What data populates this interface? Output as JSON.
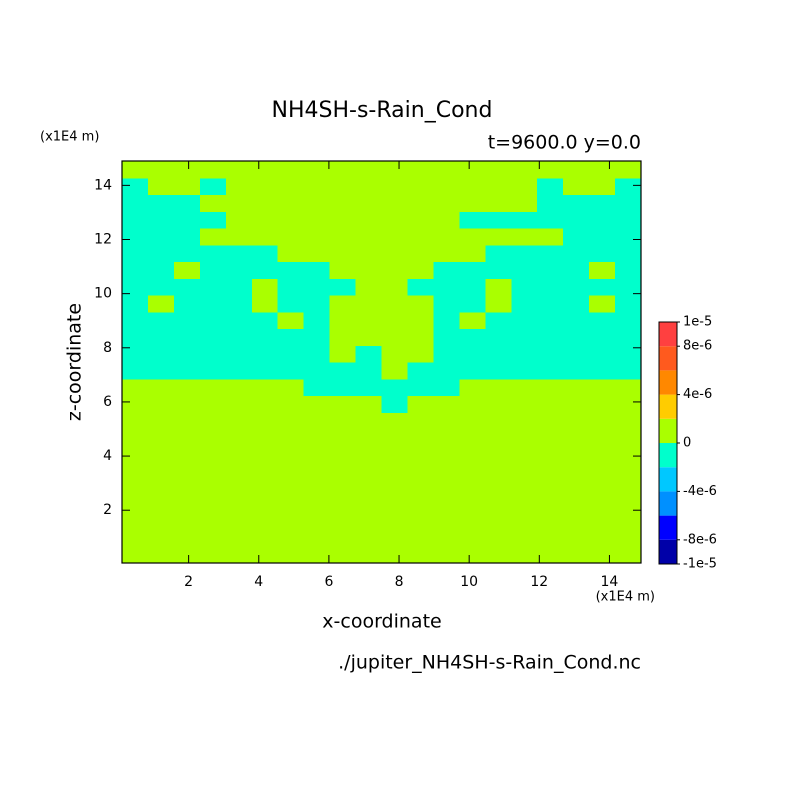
{
  "chart_data": {
    "type": "contourf",
    "title": "NH4SH-s-Rain_Cond",
    "subtitle": "t=9600.0 y=0.0",
    "x_label": "x-coordinate",
    "y_label": "z-coordinate",
    "x_unit": "(x1E4 m)",
    "y_unit": "(x1E4 m)",
    "source": "./jupiter_NH4SH-s-Rain_Cond.nc",
    "xlim": [
      0.1,
      14.9
    ],
    "ylim": [
      0.05,
      14.9
    ],
    "xticks": [
      2,
      4,
      6,
      8,
      10,
      12,
      14
    ],
    "yticks": [
      2,
      4,
      6,
      8,
      10,
      12,
      14
    ],
    "levels": [
      -1e-05,
      -8e-06,
      -6e-06,
      -4e-06,
      -2e-06,
      0,
      2e-06,
      4e-06,
      6e-06,
      8e-06,
      1e-05
    ],
    "colors": [
      "#0000a8",
      "#0000ff",
      "#0090ff",
      "#00c8ff",
      "#00ffcc",
      "#aaff00",
      "#ffcc00",
      "#ff8800",
      "#ff5a1e",
      "#ff4040"
    ],
    "colorbar_ticks": [
      {
        "value": 1e-05,
        "label": "1e-5"
      },
      {
        "value": 8e-06,
        "label": "8e-6"
      },
      {
        "value": 4e-06,
        "label": "4e-6"
      },
      0,
      {
        "value": -4e-06,
        "label": "-4e-6"
      },
      {
        "value": -8e-06,
        "label": "-8e-6"
      },
      {
        "value": -1e-05,
        "label": "-1e-5"
      }
    ],
    "z": [
      [
        1e-06,
        1e-06,
        1e-06,
        1e-06,
        1e-06,
        1e-06,
        1e-06,
        1e-06,
        1e-06,
        1e-06,
        1e-06,
        1e-06,
        1e-06,
        1e-06,
        1e-06,
        1e-06,
        1e-06,
        1e-06,
        1e-06,
        1e-06
      ],
      [
        1e-06,
        1e-06,
        1e-06,
        1e-06,
        1e-06,
        1e-06,
        1e-06,
        1e-06,
        1e-06,
        1e-06,
        1e-06,
        1e-06,
        1e-06,
        1e-06,
        1e-06,
        1e-06,
        1e-06,
        1e-06,
        1e-06,
        1e-06
      ],
      [
        1e-06,
        1e-06,
        1e-06,
        1e-06,
        1e-06,
        1e-06,
        1e-06,
        1e-06,
        1e-06,
        1e-06,
        1e-06,
        1e-06,
        1e-06,
        1e-06,
        1e-06,
        1e-06,
        1e-06,
        1e-06,
        1e-06,
        1e-06
      ],
      [
        1e-06,
        1e-06,
        1e-06,
        1e-06,
        1e-06,
        1e-06,
        1e-06,
        1e-06,
        1e-06,
        1e-06,
        1e-06,
        1e-06,
        1e-06,
        1e-06,
        1e-06,
        1e-06,
        1e-06,
        1e-06,
        1e-06,
        1e-06
      ],
      [
        1e-06,
        1e-06,
        1e-06,
        1e-06,
        1e-06,
        1e-06,
        1e-06,
        1e-06,
        1e-06,
        1e-06,
        1e-06,
        1e-06,
        1e-06,
        1e-06,
        1e-06,
        1e-06,
        1e-06,
        1e-06,
        1e-06,
        1e-06
      ],
      [
        1e-06,
        1e-06,
        1e-06,
        1e-06,
        1e-06,
        1e-06,
        1e-06,
        1e-06,
        1e-06,
        1e-06,
        1e-06,
        1e-06,
        1e-06,
        1e-06,
        1e-06,
        1e-06,
        1e-06,
        1e-06,
        1e-06,
        1e-06
      ],
      [
        1e-06,
        1e-06,
        1e-06,
        1e-06,
        1e-06,
        1e-06,
        1e-06,
        1e-06,
        1e-06,
        1e-06,
        1e-06,
        1e-06,
        1e-06,
        1e-06,
        1e-06,
        1e-06,
        1e-06,
        1e-06,
        1e-06,
        1e-06
      ],
      [
        1e-06,
        1e-06,
        1e-06,
        1e-06,
        1e-06,
        1e-06,
        1e-06,
        1e-06,
        1e-06,
        1e-06,
        1e-06,
        1e-06,
        1e-06,
        1e-06,
        1e-06,
        1e-06,
        1e-06,
        1e-06,
        1e-06,
        1e-06
      ],
      [
        1e-06,
        1e-06,
        1e-06,
        1e-06,
        1e-06,
        1e-06,
        1e-06,
        1e-06,
        1e-06,
        1e-06,
        1e-06,
        1e-06,
        1e-06,
        1e-06,
        1e-06,
        1e-06,
        1e-06,
        1e-06,
        1e-06,
        1e-06
      ],
      [
        1e-06,
        1e-06,
        1e-06,
        1e-06,
        1e-06,
        1e-06,
        1e-06,
        1e-06,
        1e-06,
        1e-06,
        -1e-06,
        1e-06,
        1e-06,
        1e-06,
        1e-06,
        1e-06,
        1e-06,
        1e-06,
        1e-06,
        1e-06
      ],
      [
        1e-06,
        1e-06,
        1e-06,
        1e-06,
        1e-06,
        1e-06,
        1e-06,
        -1e-06,
        -1e-06,
        -1e-06,
        -1e-06,
        -1e-06,
        -1e-06,
        1e-06,
        1e-06,
        1e-06,
        1e-06,
        1e-06,
        1e-06,
        1e-06
      ],
      [
        -1e-06,
        -1e-06,
        -1e-06,
        -1e-06,
        -1e-06,
        -1e-06,
        -1e-06,
        -1e-06,
        -1e-06,
        -1e-06,
        1e-06,
        -1e-06,
        -1e-06,
        -1e-06,
        -1e-06,
        -1e-06,
        -1e-06,
        -1e-06,
        -1e-06,
        -1e-06
      ],
      [
        -1e-06,
        -1e-06,
        -1e-06,
        -1e-06,
        -1e-06,
        -1e-06,
        -1e-06,
        -1e-06,
        1e-06,
        -1e-06,
        1e-06,
        1e-06,
        -1e-06,
        -1e-06,
        -1e-06,
        -1e-06,
        -1e-06,
        -1e-06,
        -1e-06,
        -1e-06
      ],
      [
        -1e-06,
        -1e-06,
        -1e-06,
        -1e-06,
        -1e-06,
        -1e-06,
        -1e-06,
        -1e-06,
        1e-06,
        1e-06,
        1e-06,
        1e-06,
        -1e-06,
        -1e-06,
        -1e-06,
        -1e-06,
        -1e-06,
        -1e-06,
        -1e-06,
        -1e-06
      ],
      [
        -1e-06,
        -1e-06,
        -1e-06,
        -1e-06,
        -1e-06,
        -1e-06,
        1e-06,
        -1e-06,
        1e-06,
        1e-06,
        1e-06,
        1e-06,
        -1e-06,
        1e-06,
        -1e-06,
        -1e-06,
        -1e-06,
        -1e-06,
        -1e-06,
        -1e-06
      ],
      [
        -1e-06,
        1e-06,
        -1e-06,
        -1e-06,
        -1e-06,
        1e-06,
        -1e-06,
        -1e-06,
        1e-06,
        1e-06,
        1e-06,
        1e-06,
        -1e-06,
        -1e-06,
        1e-06,
        -1e-06,
        -1e-06,
        -1e-06,
        1e-06,
        -1e-06
      ],
      [
        -1e-06,
        -1e-06,
        -1e-06,
        -1e-06,
        -1e-06,
        1e-06,
        -1e-06,
        -1e-06,
        -1e-06,
        1e-06,
        1e-06,
        -1e-06,
        -1e-06,
        -1e-06,
        1e-06,
        -1e-06,
        -1e-06,
        -1e-06,
        -1e-06,
        -1e-06
      ],
      [
        -1e-06,
        -1e-06,
        1e-06,
        -1e-06,
        -1e-06,
        -1e-06,
        -1e-06,
        -1e-06,
        1e-06,
        1e-06,
        1e-06,
        1e-06,
        -1e-06,
        -1e-06,
        -1e-06,
        -1e-06,
        -1e-06,
        -1e-06,
        1e-06,
        -1e-06
      ],
      [
        -1e-06,
        -1e-06,
        -1e-06,
        -1e-06,
        -1e-06,
        -1e-06,
        1e-06,
        1e-06,
        1e-06,
        1e-06,
        1e-06,
        1e-06,
        1e-06,
        1e-06,
        -1e-06,
        -1e-06,
        -1e-06,
        -1e-06,
        -1e-06,
        -1e-06
      ],
      [
        -1e-06,
        -1e-06,
        -1e-06,
        1e-06,
        1e-06,
        1e-06,
        1e-06,
        1e-06,
        1e-06,
        1e-06,
        1e-06,
        1e-06,
        1e-06,
        1e-06,
        1e-06,
        1e-06,
        1e-06,
        -1e-06,
        -1e-06,
        -1e-06
      ],
      [
        -1e-06,
        -1e-06,
        -1e-06,
        -1e-06,
        1e-06,
        1e-06,
        1e-06,
        1e-06,
        1e-06,
        1e-06,
        1e-06,
        1e-06,
        1e-06,
        -1e-06,
        -1e-06,
        -1e-06,
        -1e-06,
        -1e-06,
        -1e-06,
        -1e-06
      ],
      [
        -1e-06,
        -1e-06,
        -1e-06,
        1e-06,
        1e-06,
        1e-06,
        1e-06,
        1e-06,
        1e-06,
        1e-06,
        1e-06,
        1e-06,
        1e-06,
        1e-06,
        1e-06,
        1e-06,
        -1e-06,
        -1e-06,
        -1e-06,
        -1e-06
      ],
      [
        -1e-06,
        1e-06,
        1e-06,
        -1e-06,
        1e-06,
        1e-06,
        1e-06,
        1e-06,
        1e-06,
        1e-06,
        1e-06,
        1e-06,
        1e-06,
        1e-06,
        1e-06,
        1e-06,
        -1e-06,
        1e-06,
        1e-06,
        -1e-06
      ],
      [
        1e-06,
        1e-06,
        1e-06,
        1e-06,
        1e-06,
        1e-06,
        1e-06,
        1e-06,
        1e-06,
        1e-06,
        1e-06,
        1e-06,
        1e-06,
        1e-06,
        1e-06,
        1e-06,
        1e-06,
        1e-06,
        1e-06,
        1e-06
      ]
    ]
  }
}
